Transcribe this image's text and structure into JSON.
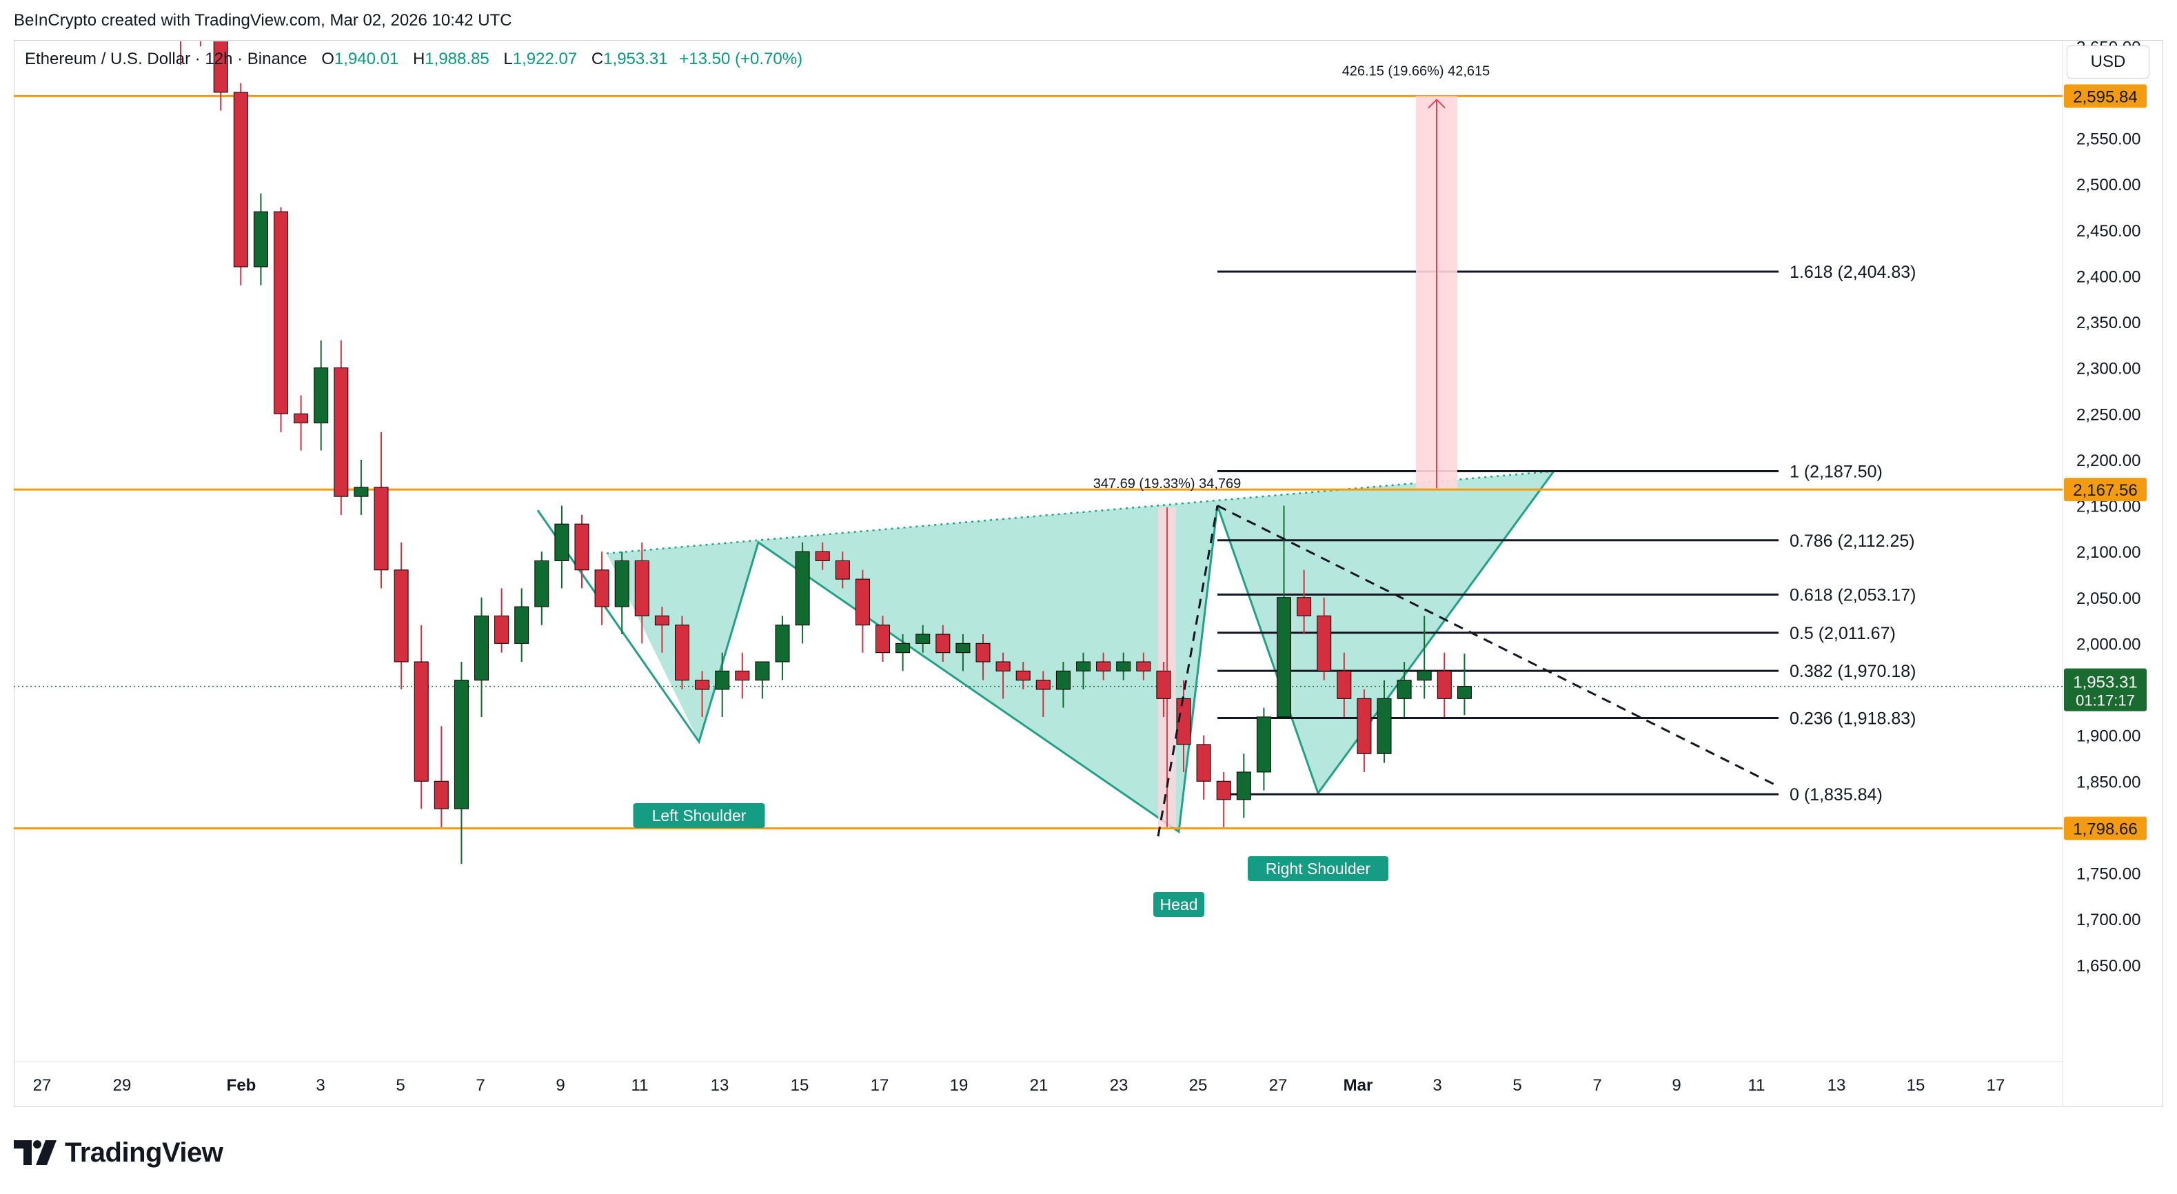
{
  "header": {
    "credit": "BeInCrypto created with TradingView.com, Mar 02, 2026 10:42 UTC"
  },
  "legend": {
    "symbol": "Ethereum / U.S. Dollar · 12h · Binance",
    "open_label": "O",
    "open": "1,940.01",
    "high_label": "H",
    "high": "1,988.85",
    "low_label": "L",
    "low": "1,922.07",
    "close_label": "C",
    "close": "1,953.31",
    "change": "+13.50 (+0.70%)"
  },
  "currency_button": "USD",
  "brand": {
    "text": "TradingView"
  },
  "colors": {
    "up": "#0f6b2f",
    "down": "#d32f3f",
    "level": "#f39c12",
    "pattern_fill": "#b2e6da",
    "pattern_stroke": "#22a088",
    "label_bg": "#149c84",
    "target_fill": "#ffd7dc",
    "target_line": "#e8404f",
    "last_price": "#1a6b2f"
  },
  "chart_data": {
    "type": "candlestick",
    "symbol": "ETHUSD",
    "interval": "12h",
    "ylim": [
      1600,
      2720
    ],
    "x_ticks": [
      "27",
      "29",
      "Feb",
      "3",
      "5",
      "7",
      "9",
      "11",
      "13",
      "15",
      "17",
      "19",
      "21",
      "23",
      "25",
      "27",
      "Mar",
      "3",
      "5",
      "7",
      "9",
      "11",
      "13",
      "15",
      "17"
    ],
    "y_ticks": [
      "2,650.00",
      "2,600.00",
      "2,550.00",
      "2,500.00",
      "2,450.00",
      "2,400.00",
      "2,350.00",
      "2,300.00",
      "2,250.00",
      "2,200.00",
      "2,150.00",
      "2,100.00",
      "2,050.00",
      "2,000.00",
      "1,950.00",
      "1,900.00",
      "1,850.00",
      "1,800.00",
      "1,750.00",
      "1,700.00",
      "1,650.00"
    ],
    "candles": [
      [
        2760,
        2790,
        2630,
        2700
      ],
      [
        2700,
        2720,
        2650,
        2680
      ],
      [
        2680,
        2700,
        2580,
        2600
      ],
      [
        2600,
        2610,
        2390,
        2410
      ],
      [
        2410,
        2490,
        2390,
        2470
      ],
      [
        2470,
        2475,
        2230,
        2250
      ],
      [
        2250,
        2270,
        2210,
        2240
      ],
      [
        2240,
        2330,
        2210,
        2300
      ],
      [
        2300,
        2330,
        2140,
        2160
      ],
      [
        2160,
        2200,
        2140,
        2170
      ],
      [
        2170,
        2230,
        2060,
        2080
      ],
      [
        2080,
        2110,
        1950,
        1980
      ],
      [
        1980,
        2020,
        1820,
        1850
      ],
      [
        1850,
        1910,
        1800,
        1820
      ],
      [
        1820,
        1980,
        1760,
        1960
      ],
      [
        1960,
        2050,
        1920,
        2030
      ],
      [
        2030,
        2060,
        1990,
        2000
      ],
      [
        2000,
        2060,
        1980,
        2040
      ],
      [
        2040,
        2100,
        2020,
        2090
      ],
      [
        2090,
        2150,
        2060,
        2130
      ],
      [
        2130,
        2140,
        2060,
        2080
      ],
      [
        2080,
        2100,
        2020,
        2040
      ],
      [
        2040,
        2100,
        2010,
        2090
      ],
      [
        2090,
        2110,
        2000,
        2030
      ],
      [
        2030,
        2040,
        1990,
        2020
      ],
      [
        2020,
        2030,
        1950,
        1960
      ],
      [
        1960,
        1970,
        1920,
        1950
      ],
      [
        1950,
        1990,
        1920,
        1970
      ],
      [
        1970,
        1990,
        1940,
        1960
      ],
      [
        1960,
        1980,
        1940,
        1980
      ],
      [
        1980,
        2030,
        1960,
        2020
      ],
      [
        2020,
        2110,
        2000,
        2100
      ],
      [
        2100,
        2110,
        2080,
        2090
      ],
      [
        2090,
        2100,
        2060,
        2070
      ],
      [
        2070,
        2080,
        1990,
        2020
      ],
      [
        2020,
        2030,
        1980,
        1990
      ],
      [
        1990,
        2010,
        1970,
        2000
      ],
      [
        2000,
        2020,
        1990,
        2010
      ],
      [
        2010,
        2020,
        1980,
        1990
      ],
      [
        1990,
        2010,
        1970,
        2000
      ],
      [
        2000,
        2010,
        1960,
        1980
      ],
      [
        1980,
        1990,
        1940,
        1970
      ],
      [
        1970,
        1980,
        1950,
        1960
      ],
      [
        1960,
        1970,
        1920,
        1950
      ],
      [
        1950,
        1980,
        1930,
        1970
      ],
      [
        1970,
        1990,
        1950,
        1980
      ],
      [
        1980,
        1990,
        1960,
        1970
      ],
      [
        1970,
        1990,
        1960,
        1980
      ],
      [
        1980,
        1990,
        1960,
        1970
      ],
      [
        1970,
        1980,
        1920,
        1940
      ],
      [
        1940,
        1960,
        1860,
        1890
      ],
      [
        1890,
        1900,
        1830,
        1850
      ],
      [
        1850,
        1860,
        1800,
        1830
      ],
      [
        1830,
        1880,
        1810,
        1860
      ],
      [
        1860,
        1930,
        1840,
        1920
      ],
      [
        1920,
        2150,
        1920,
        2050
      ],
      [
        2050,
        2080,
        2010,
        2030
      ],
      [
        2030,
        2050,
        1960,
        1970
      ],
      [
        1970,
        1990,
        1920,
        1940
      ],
      [
        1940,
        1950,
        1860,
        1880
      ],
      [
        1880,
        1960,
        1870,
        1940
      ],
      [
        1940,
        1980,
        1920,
        1960
      ],
      [
        1960,
        2030,
        1940,
        1970
      ],
      [
        1970,
        1990,
        1920,
        1940
      ],
      [
        1940,
        1988.85,
        1922.07,
        1953.31
      ]
    ],
    "horizontal_levels": [
      {
        "value": 2595.84,
        "label": "2,595.84"
      },
      {
        "value": 2167.56,
        "label": "2,167.56"
      },
      {
        "value": 1798.66,
        "label": "1,798.66"
      }
    ],
    "last_price": {
      "value": 1953.31,
      "label": "1,953.31",
      "countdown": "01:17:17"
    },
    "fibonacci": [
      {
        "value": 2404.83,
        "label": "1.618 (2,404.83)"
      },
      {
        "value": 2187.5,
        "label": "1 (2,187.50)"
      },
      {
        "value": 2112.25,
        "label": "0.786 (2,112.25)"
      },
      {
        "value": 2053.17,
        "label": "0.618 (2,053.17)"
      },
      {
        "value": 2011.67,
        "label": "0.5 (2,011.67)"
      },
      {
        "value": 1970.18,
        "label": "0.382 (1,970.18)"
      },
      {
        "value": 1918.83,
        "label": "0.236 (1,918.83)"
      },
      {
        "value": 1835.84,
        "label": "0 (1,835.84)"
      }
    ],
    "pattern_labels": {
      "left_shoulder": "Left Shoulder",
      "head": "Head",
      "right_shoulder": "Right Shoulder"
    },
    "measures": [
      {
        "label": "347.69 (19.33%) 34,769"
      },
      {
        "label": "426.15 (19.66%) 42,615"
      }
    ]
  }
}
